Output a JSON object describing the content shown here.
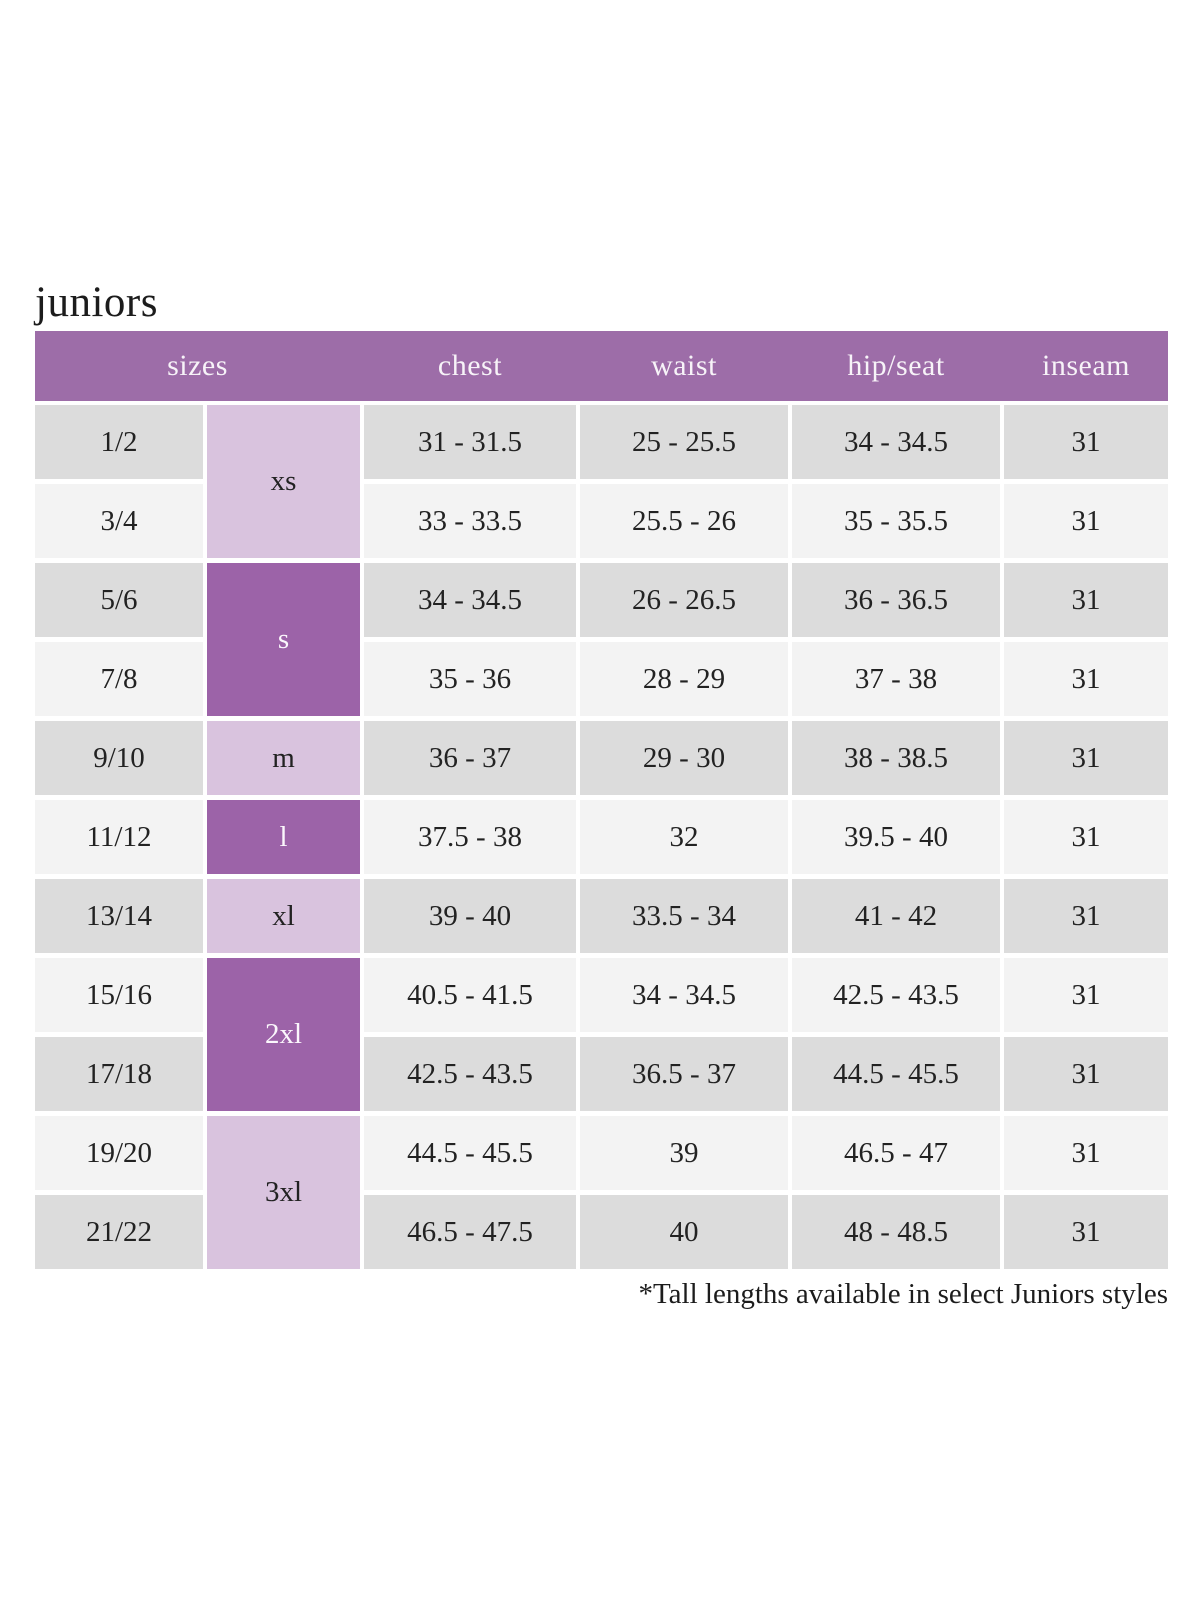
{
  "title": "juniors",
  "footnote": "*Tall lengths available in select Juniors styles",
  "colors": {
    "header_bg": "#9d6da8",
    "size_dark_bg": "#9c63a8",
    "size_light_bg": "#d9c3de",
    "row_dark_bg": "#dcdcdc",
    "row_light_bg": "#f3f3f3",
    "header_text": "#f7f3f8",
    "body_text": "#222222"
  },
  "table": {
    "headers": [
      "sizes",
      "chest",
      "waist",
      "hip/seat",
      "inseam"
    ],
    "size_groups": [
      {
        "label": "xs",
        "span": 2,
        "shade": "light"
      },
      {
        "label": "s",
        "span": 2,
        "shade": "dark"
      },
      {
        "label": "m",
        "span": 1,
        "shade": "light"
      },
      {
        "label": "l",
        "span": 1,
        "shade": "dark"
      },
      {
        "label": "xl",
        "span": 1,
        "shade": "light"
      },
      {
        "label": "2xl",
        "span": 2,
        "shade": "dark"
      },
      {
        "label": "3xl",
        "span": 2,
        "shade": "light"
      }
    ],
    "rows": [
      {
        "size": "1/2",
        "chest": "31 - 31.5",
        "waist": "25 - 25.5",
        "hip_seat": "34 - 34.5",
        "inseam": "31"
      },
      {
        "size": "3/4",
        "chest": "33 - 33.5",
        "waist": "25.5 - 26",
        "hip_seat": "35 - 35.5",
        "inseam": "31"
      },
      {
        "size": "5/6",
        "chest": "34 - 34.5",
        "waist": "26 - 26.5",
        "hip_seat": "36 - 36.5",
        "inseam": "31"
      },
      {
        "size": "7/8",
        "chest": "35 - 36",
        "waist": "28 - 29",
        "hip_seat": "37 - 38",
        "inseam": "31"
      },
      {
        "size": "9/10",
        "chest": "36 - 37",
        "waist": "29 - 30",
        "hip_seat": "38 - 38.5",
        "inseam": "31"
      },
      {
        "size": "11/12",
        "chest": "37.5 - 38",
        "waist": "32",
        "hip_seat": "39.5 - 40",
        "inseam": "31"
      },
      {
        "size": "13/14",
        "chest": "39 - 40",
        "waist": "33.5 - 34",
        "hip_seat": "41 - 42",
        "inseam": "31"
      },
      {
        "size": "15/16",
        "chest": "40.5 - 41.5",
        "waist": "34 - 34.5",
        "hip_seat": "42.5 - 43.5",
        "inseam": "31"
      },
      {
        "size": "17/18",
        "chest": "42.5 - 43.5",
        "waist": "36.5 - 37",
        "hip_seat": "44.5 - 45.5",
        "inseam": "31"
      },
      {
        "size": "19/20",
        "chest": "44.5 - 45.5",
        "waist": "39",
        "hip_seat": "46.5 - 47",
        "inseam": "31"
      },
      {
        "size": "21/22",
        "chest": "46.5 - 47.5",
        "waist": "40",
        "hip_seat": "48 - 48.5",
        "inseam": "31"
      }
    ]
  }
}
